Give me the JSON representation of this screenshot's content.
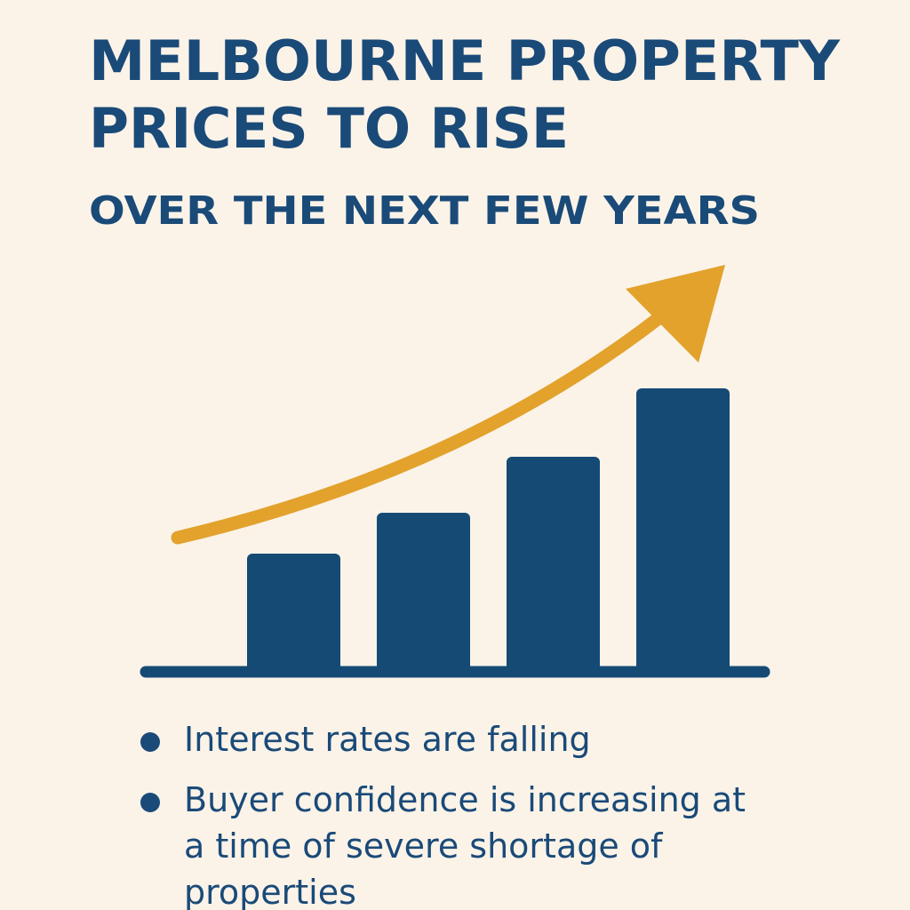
{
  "title_lines": [
    "MELBOURNE PROPERTY",
    "PRICES TO RISE"
  ],
  "subtitle": "OVER THE NEXT FEW YEARS",
  "bullets": [
    "Interest rates are falling",
    "Buyer confidence is increasing at a time of severe shortage of properties"
  ]
}
